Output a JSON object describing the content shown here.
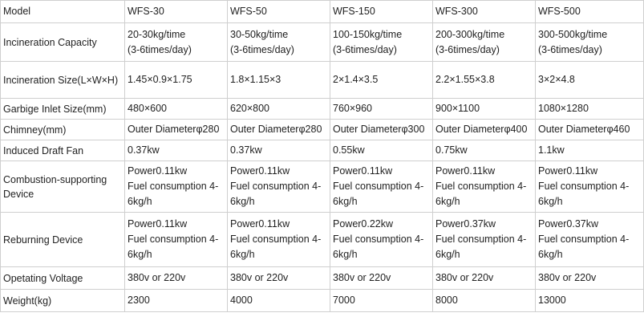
{
  "table": {
    "headers": [
      "Model",
      "WFS-30",
      "WFS-50",
      "WFS-150",
      "WFS-300",
      "WFS-500"
    ],
    "rows": [
      {
        "label": "Incineration Capacity",
        "cells": [
          [
            "20-30kg/time",
            "(3-6times/day)"
          ],
          [
            "30-50kg/time",
            "(3-6times/day)"
          ],
          [
            "100-150kg/time",
            "(3-6times/day)"
          ],
          [
            "200-300kg/time",
            "(3-6times/day)"
          ],
          [
            "300-500kg/time",
            "(3-6times/day)"
          ]
        ]
      },
      {
        "label": "Incineration Size(L×W×H)",
        "cells": [
          "1.45×0.9×1.75",
          "1.8×1.15×3",
          "2×1.4×3.5",
          "2.2×1.55×3.8",
          "3×2×4.8"
        ]
      },
      {
        "label": "Garbige Inlet Size(mm)",
        "cells": [
          "480×600",
          "620×800",
          "760×960",
          "900×1100",
          "1080×1280"
        ]
      },
      {
        "label": "Chimney(mm)",
        "cells": [
          "Outer Diameterφ280",
          "Outer Diameterφ280",
          "Outer Diameterφ300",
          "Outer Diameterφ400",
          "Outer Diameterφ460"
        ]
      },
      {
        "label": "Induced Draft Fan",
        "cells": [
          "0.37kw",
          "0.37kw",
          "0.55kw",
          "0.75kw",
          "1.1kw"
        ]
      },
      {
        "label": "Combustion-supporting Device",
        "cells": [
          [
            "Power0.11kw",
            "Fuel consumption 4-",
            "6kg/h"
          ],
          [
            "Power0.11kw",
            "Fuel consumption 4-",
            "6kg/h"
          ],
          [
            "Power0.11kw",
            "Fuel consumption 4-",
            "6kg/h"
          ],
          [
            "Power0.11kw",
            "Fuel consumption 4-",
            "6kg/h"
          ],
          [
            "Power0.11kw",
            "Fuel consumption 4-",
            "6kg/h"
          ]
        ]
      },
      {
        "label": "Reburning Device",
        "cells": [
          [
            "Power0.11kw",
            "Fuel consumption 4-",
            "6kg/h"
          ],
          [
            "Power0.11kw",
            "Fuel consumption 4-",
            "6kg/h"
          ],
          [
            "Power0.22kw",
            "Fuel consumption 4-",
            "6kg/h"
          ],
          [
            "Power0.37kw",
            "Fuel consumption 4-",
            "6kg/h"
          ],
          [
            "Power0.37kw",
            "Fuel consumption 4-",
            "6kg/h"
          ]
        ]
      },
      {
        "label": "Opetating Voltage",
        "cells": [
          "380v or 220v",
          "380v or 220v",
          "380v or 220v",
          "380v or 220v",
          "380v or 220v"
        ]
      },
      {
        "label": "Weight(kg)",
        "cells": [
          "2300",
          "4000",
          "7000",
          "8000",
          "13000"
        ]
      }
    ]
  }
}
